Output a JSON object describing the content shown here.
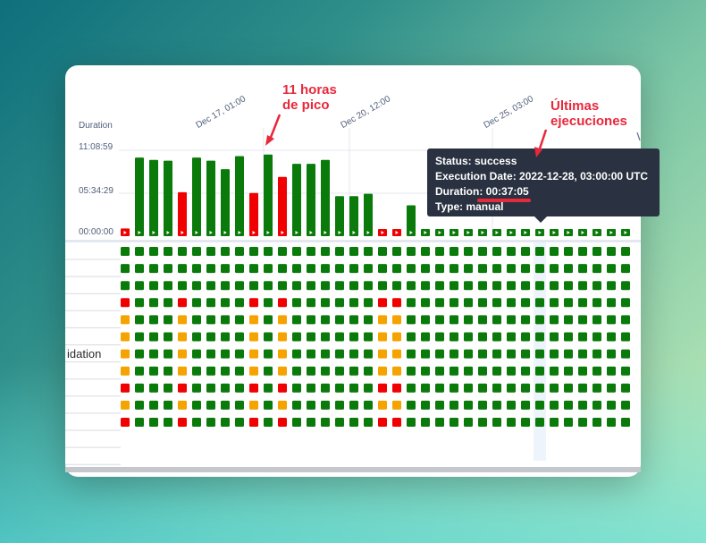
{
  "chart_data": {
    "type": "bar",
    "ylabel": "Duration",
    "y_ticks": [
      "00:00:00",
      "05:34:29",
      "11:08:59"
    ],
    "ylim_hours": [
      0,
      11.15
    ],
    "x_date_labels": [
      "Dec 17, 01:00",
      "Dec 20, 12:00",
      "Dec 25, 03:00"
    ],
    "run_states": [
      "failed",
      "success",
      "success",
      "success",
      "failed",
      "success",
      "success",
      "success",
      "success",
      "failed",
      "success",
      "failed",
      "success",
      "success",
      "success",
      "success",
      "success",
      "success",
      "failed",
      "failed",
      "success",
      "success",
      "success",
      "success",
      "success",
      "success",
      "success",
      "success",
      "success",
      "success",
      "success",
      "success",
      "success",
      "success",
      "success",
      "success"
    ],
    "durations_hours": [
      1.0,
      10.2,
      9.9,
      9.8,
      5.7,
      10.2,
      9.8,
      8.7,
      10.4,
      5.6,
      10.6,
      7.7,
      9.4,
      9.4,
      9.9,
      5.2,
      5.2,
      5.5,
      0.9,
      0.9,
      4.0,
      0.6,
      0.6,
      0.6,
      0.6,
      0.6,
      0.6,
      0.6,
      0.6,
      0.6,
      0.6,
      0.6,
      0.6,
      0.6,
      0.6,
      0.6
    ],
    "task_rows": [
      "SSSSSSSSSSSSSSSSSSSSSSSSSSSSSSSSSSSS",
      "SSSSSSSSSSSSSSSSSSSSSSSSSSSSSSSSSSSS",
      "SSSSSSSSSSSSSSSSSSSSSSSSSSSSSSSSSSSS",
      "FSSSFSSSSFSFSSSSSSFFSSSSSSSSSSSSSSSS",
      "USSSUSSSSUSUSSSSSSUUSSSSSSSSSSSSSSSS",
      "USSSUSSSSUSUSSSSSSUUSSSSSSSSSSSSSSSS",
      "USSSUSSSSUSUSSSSSSUUSSSSSSSSSSSSSSSS",
      "USSSUSSSSUSUSSSSSSUUSSSSSSSSSSSSSSSS",
      "FSSSFSSSSFSFSSSSSSFFSSSSSSSSSSSSSSSS",
      "USSSUSSSSUSUSSSSSSUUSSSSSSSSSSSSSSSS",
      "FSSSFSSSSFSFSSSSSSFFSSSSSSSSSSSSSSSS"
    ],
    "grid": true
  },
  "colors": {
    "success": "#0a7a0a",
    "failed": "#f00000",
    "upstream_failed": "#f5a300",
    "annotation": "#e8283b",
    "tooltip_bg": "#2a3241"
  },
  "task_label_partial": "idation",
  "annotations": {
    "peak": [
      "11 horas",
      "de pico"
    ],
    "latest": [
      "Últimas",
      "ejecuciones"
    ]
  },
  "tooltip": {
    "status": "Status: success",
    "execution_date": "Execution Date: 2022-12-28, 03:00:00 UTC",
    "duration_prefix": "Duration: ",
    "duration_value": "00:37:05",
    "type": "Type: manual"
  }
}
